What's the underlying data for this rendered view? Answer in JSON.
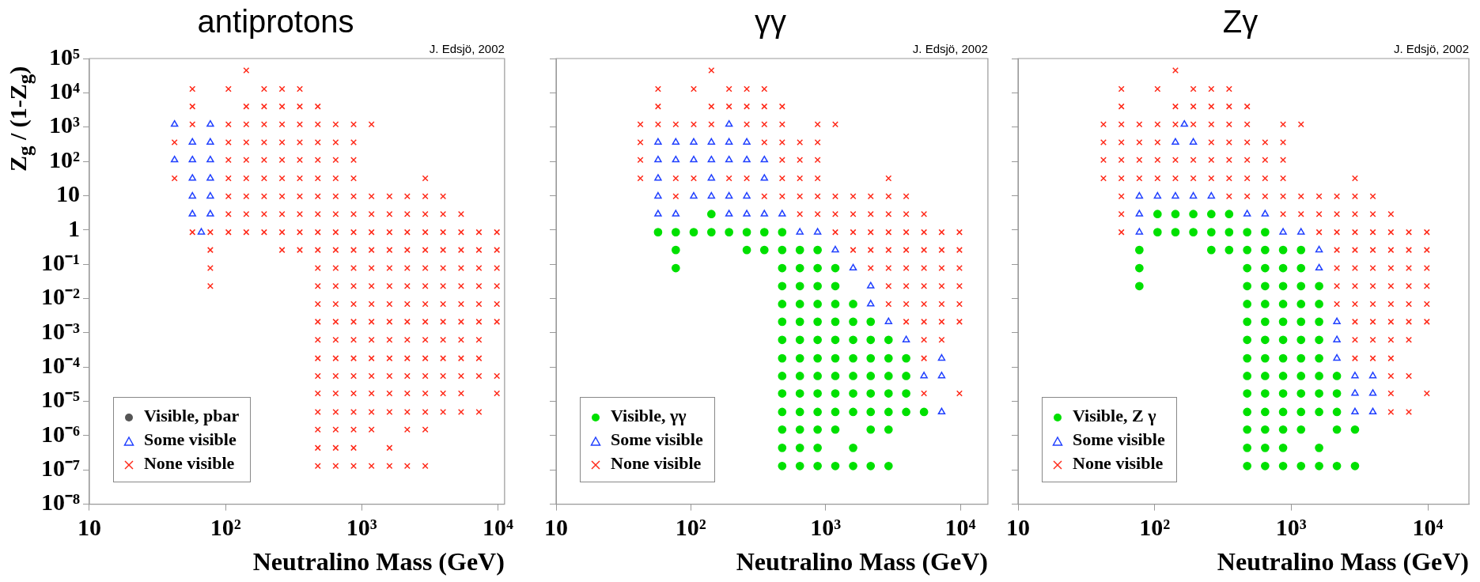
{
  "chart_data": [
    {
      "type": "scatter",
      "title": "antiprotons",
      "xlabel": "Neutralino Mass (GeV)",
      "ylabel": "Z$_{g}$ / (1-Z$_{g}$)",
      "annotations": [
        "J. Edsjö, 2002"
      ],
      "log": "xy",
      "grid": false,
      "legend": "bottom left",
      "xlim": [
        10,
        11200
      ],
      "xticks": [
        {
          "value": 10,
          "label": "10"
        },
        {
          "value": 100,
          "label": "10²"
        },
        {
          "value": 1000,
          "label": "10³"
        },
        {
          "value": 10000,
          "label": "10⁴"
        }
      ],
      "ylim": [
        1e-08,
        100000.0
      ],
      "yticks": [
        {
          "value": 1e-08,
          "label": "10⁻⁸"
        },
        {
          "value": 1e-07,
          "label": "10⁻⁷"
        },
        {
          "value": 1e-06,
          "label": "10⁻⁶"
        },
        {
          "value": 1e-05,
          "label": "10⁻⁵"
        },
        {
          "value": 0.0001,
          "label": "10⁻⁴"
        },
        {
          "value": 0.001,
          "label": "10⁻³"
        },
        {
          "value": 0.01,
          "label": "10⁻²"
        },
        {
          "value": 0.1,
          "label": "10⁻¹"
        },
        {
          "value": 1,
          "label": "1"
        },
        {
          "value": 10,
          "label": "10"
        },
        {
          "value": 100,
          "label": "10²"
        },
        {
          "value": 1000,
          "label": "10³"
        },
        {
          "value": 10000,
          "label": "10⁴"
        },
        {
          "value": 100000,
          "label": "10⁵"
        }
      ],
      "series": [
        {
          "name": "Visible, pbar",
          "color": "#555555",
          "marker": "circle"
        },
        {
          "name": "Some visible",
          "color": "#2040ff",
          "marker": "triangle",
          "x": [
            42.2,
            77.3,
            57.1,
            77.3,
            42.2,
            57.1,
            77.3,
            57.1,
            77.3,
            57.1,
            77.3,
            57.1,
            77.3,
            66.4
          ],
          "values": [
            1200,
            1200,
            360,
            360,
            110,
            110,
            110,
            32,
            32,
            9.6,
            9.6,
            2.9,
            2.9,
            0.86
          ]
        },
        {
          "name": "None visible",
          "color": "#ff2a1a",
          "marker": "cross",
          "x": [
            142,
            57.1,
            105,
            192,
            260,
            351,
            57.1,
            142,
            192,
            260,
            351,
            476,
            57.1,
            105,
            142,
            192,
            260,
            351,
            476,
            644,
            872,
            1180,
            42.2,
            105,
            142,
            192,
            260,
            351,
            476,
            644,
            872,
            105,
            142,
            192,
            260,
            351,
            476,
            644,
            872,
            42.2,
            105,
            142,
            192,
            260,
            351,
            476,
            644,
            872,
            2930,
            105,
            142,
            192,
            260,
            351,
            476,
            644,
            872,
            1180,
            1600,
            2160,
            2930,
            3960,
            105,
            142,
            192,
            260,
            351,
            476,
            644,
            872,
            1180,
            1600,
            2160,
            2930,
            3960,
            5370,
            57.1,
            77.3,
            105,
            142,
            192,
            260,
            351,
            476,
            644,
            872,
            1180,
            1600,
            2160,
            2930,
            3960,
            5370,
            7260,
            9840,
            77.3,
            260,
            351,
            476,
            644,
            872,
            1180,
            1600,
            2160,
            2930,
            3960,
            5370,
            7260,
            9840,
            77.3,
            476,
            644,
            872,
            1180,
            1600,
            2160,
            2930,
            3960,
            5370,
            7260,
            9840,
            77.3,
            476,
            644,
            872,
            1180,
            1600,
            2160,
            2930,
            3960,
            5370,
            7260,
            9840,
            476,
            644,
            872,
            1180,
            1600,
            2160,
            2930,
            3960,
            5370,
            7260,
            9840,
            476,
            644,
            872,
            1180,
            1600,
            2160,
            2930,
            3960,
            5370,
            7260,
            9840,
            476,
            644,
            872,
            1180,
            1600,
            2160,
            2930,
            3960,
            5370,
            7260,
            476,
            644,
            872,
            1180,
            1600,
            2160,
            2930,
            3960,
            5370,
            7260,
            476,
            644,
            872,
            1180,
            1600,
            2160,
            2930,
            3960,
            5370,
            7260,
            9840,
            476,
            644,
            872,
            1180,
            1600,
            2160,
            2930,
            3960,
            5370,
            9840,
            476,
            644,
            872,
            1180,
            1600,
            2160,
            2930,
            3960,
            5370,
            7260,
            476,
            644,
            872,
            1180,
            2160,
            2930,
            476,
            644,
            872,
            1600,
            476,
            644,
            872,
            1180,
            1600,
            2160,
            2930
          ],
          "values": [
            45000,
            13000,
            13000,
            13000,
            13000,
            13000,
            4000,
            4000,
            4000,
            4000,
            4000,
            4000,
            1200,
            1200,
            1200,
            1200,
            1200,
            1200,
            1200,
            1200,
            1200,
            1200,
            360,
            360,
            360,
            360,
            360,
            360,
            360,
            360,
            360,
            110,
            110,
            110,
            110,
            110,
            110,
            110,
            110,
            32,
            32,
            32,
            32,
            32,
            32,
            32,
            32,
            32,
            32,
            9.6,
            9.6,
            9.6,
            9.6,
            9.6,
            9.6,
            9.6,
            9.6,
            9.6,
            9.6,
            9.6,
            9.6,
            9.6,
            2.9,
            2.9,
            2.9,
            2.9,
            2.9,
            2.9,
            2.9,
            2.9,
            2.9,
            2.9,
            2.9,
            2.9,
            2.9,
            2.9,
            0.86,
            0.86,
            0.86,
            0.86,
            0.86,
            0.86,
            0.86,
            0.86,
            0.86,
            0.86,
            0.86,
            0.86,
            0.86,
            0.86,
            0.86,
            0.86,
            0.86,
            0.86,
            0.26,
            0.26,
            0.26,
            0.26,
            0.26,
            0.26,
            0.26,
            0.26,
            0.26,
            0.26,
            0.26,
            0.26,
            0.26,
            0.26,
            0.077,
            0.077,
            0.077,
            0.077,
            0.077,
            0.077,
            0.077,
            0.077,
            0.077,
            0.077,
            0.077,
            0.077,
            0.023,
            0.023,
            0.023,
            0.023,
            0.023,
            0.023,
            0.023,
            0.023,
            0.023,
            0.023,
            0.023,
            0.023,
            0.0069,
            0.0069,
            0.0069,
            0.0069,
            0.0069,
            0.0069,
            0.0069,
            0.0069,
            0.0069,
            0.0069,
            0.0069,
            0.0021,
            0.0021,
            0.0021,
            0.0021,
            0.0021,
            0.0021,
            0.0021,
            0.0021,
            0.0021,
            0.0021,
            0.0021,
            0.00062,
            0.00062,
            0.00062,
            0.00062,
            0.00062,
            0.00062,
            0.00062,
            0.00062,
            0.00062,
            0.00062,
            0.00018,
            0.00018,
            0.00018,
            0.00018,
            0.00018,
            0.00018,
            0.00018,
            0.00018,
            0.00018,
            0.00018,
            5.5e-05,
            5.5e-05,
            5.5e-05,
            5.5e-05,
            5.5e-05,
            5.5e-05,
            5.5e-05,
            5.5e-05,
            5.5e-05,
            5.5e-05,
            5.5e-05,
            1.7e-05,
            1.7e-05,
            1.7e-05,
            1.7e-05,
            1.7e-05,
            1.7e-05,
            1.7e-05,
            1.7e-05,
            1.7e-05,
            1.7e-05,
            4.9e-06,
            4.9e-06,
            4.9e-06,
            4.9e-06,
            4.9e-06,
            4.9e-06,
            4.9e-06,
            4.9e-06,
            4.9e-06,
            4.9e-06,
            1.5e-06,
            1.5e-06,
            1.5e-06,
            1.5e-06,
            1.5e-06,
            1.5e-06,
            4.4e-07,
            4.4e-07,
            4.4e-07,
            4.4e-07,
            1.3e-07,
            1.3e-07,
            1.3e-07,
            1.3e-07,
            1.3e-07,
            1.3e-07,
            1.3e-07
          ]
        }
      ]
    },
    {
      "type": "scatter",
      "title": "γγ",
      "xlabel": "Neutralino Mass (GeV)",
      "annotations": [
        "J. Edsjö, 2002"
      ],
      "log": "xy",
      "grid": false,
      "legend": "bottom left",
      "tick_labels": "x",
      "xlim": [
        10,
        16000
      ],
      "xticks": [
        10,
        {
          "value": 100,
          "label": "10²"
        },
        {
          "value": 1000,
          "label": "10³"
        },
        {
          "value": 10000,
          "label": "10⁴"
        }
      ],
      "ylim": [
        1e-08,
        100000.0
      ],
      "yticks": [
        1e-08,
        1e-07,
        1e-06,
        1e-05,
        0.0001,
        0.001,
        0.01,
        0.1,
        1,
        10,
        100,
        1000,
        10000,
        100000
      ],
      "series": [
        {
          "name": "Visible, γγ",
          "color": "#00e000",
          "marker": "circle",
          "x": [
            142,
            57.1,
            77.3,
            105,
            142,
            192,
            260,
            351,
            476,
            77.3,
            260,
            351,
            476,
            644,
            872,
            77.3,
            476,
            644,
            872,
            1180,
            476,
            644,
            872,
            1180,
            476,
            644,
            872,
            1180,
            1600,
            476,
            644,
            872,
            1180,
            1600,
            2160,
            476,
            644,
            872,
            1180,
            1600,
            2160,
            2930,
            476,
            644,
            872,
            1180,
            1600,
            2160,
            2930,
            3960,
            476,
            644,
            872,
            1180,
            1600,
            2160,
            2930,
            3960,
            476,
            644,
            872,
            1180,
            1600,
            2160,
            2930,
            3960,
            476,
            644,
            872,
            1180,
            1600,
            2160,
            2930,
            3960,
            5370,
            476,
            644,
            872,
            1180,
            2160,
            2930,
            476,
            644,
            872,
            1600,
            476,
            644,
            872,
            1180,
            1600,
            2160,
            2930
          ],
          "values": [
            2.9,
            0.86,
            0.86,
            0.86,
            0.86,
            0.86,
            0.86,
            0.86,
            0.86,
            0.26,
            0.26,
            0.26,
            0.26,
            0.26,
            0.26,
            0.077,
            0.077,
            0.077,
            0.077,
            0.077,
            0.023,
            0.023,
            0.023,
            0.023,
            0.0069,
            0.0069,
            0.0069,
            0.0069,
            0.0069,
            0.0021,
            0.0021,
            0.0021,
            0.0021,
            0.0021,
            0.0021,
            0.00062,
            0.00062,
            0.00062,
            0.00062,
            0.00062,
            0.00062,
            0.00062,
            0.00018,
            0.00018,
            0.00018,
            0.00018,
            0.00018,
            0.00018,
            0.00018,
            0.00018,
            5.5e-05,
            5.5e-05,
            5.5e-05,
            5.5e-05,
            5.5e-05,
            5.5e-05,
            5.5e-05,
            5.5e-05,
            1.7e-05,
            1.7e-05,
            1.7e-05,
            1.7e-05,
            1.7e-05,
            1.7e-05,
            1.7e-05,
            1.7e-05,
            4.9e-06,
            4.9e-06,
            4.9e-06,
            4.9e-06,
            4.9e-06,
            4.9e-06,
            4.9e-06,
            4.9e-06,
            4.9e-06,
            1.5e-06,
            1.5e-06,
            1.5e-06,
            1.5e-06,
            1.5e-06,
            1.5e-06,
            4.4e-07,
            4.4e-07,
            4.4e-07,
            4.4e-07,
            1.3e-07,
            1.3e-07,
            1.3e-07,
            1.3e-07,
            1.3e-07,
            1.3e-07,
            1.3e-07
          ]
        },
        {
          "name": "Some visible",
          "color": "#2040ff",
          "marker": "triangle",
          "x": [
            192,
            57.1,
            77.3,
            105,
            142,
            192,
            260,
            57.1,
            77.3,
            105,
            142,
            192,
            260,
            351,
            57.1,
            142,
            351,
            57.1,
            105,
            142,
            192,
            260,
            57.1,
            77.3,
            192,
            260,
            351,
            476,
            644,
            872,
            1180,
            1600,
            2160,
            2160,
            2930,
            3960,
            7260,
            5370,
            7260,
            7260
          ],
          "values": [
            1200,
            360,
            360,
            360,
            360,
            360,
            360,
            110,
            110,
            110,
            110,
            110,
            110,
            110,
            32,
            32,
            32,
            9.6,
            9.6,
            9.6,
            9.6,
            9.6,
            2.9,
            2.9,
            2.9,
            2.9,
            2.9,
            2.9,
            0.86,
            0.86,
            0.26,
            0.077,
            0.023,
            0.0069,
            0.0021,
            0.00062,
            0.00018,
            5.5e-05,
            5.5e-05,
            4.9e-06
          ]
        },
        {
          "name": "None visible",
          "color": "#ff2a1a",
          "marker": "cross",
          "x": [
            142,
            57.1,
            105,
            192,
            260,
            351,
            57.1,
            142,
            192,
            260,
            351,
            476,
            42.2,
            57.1,
            77.3,
            105,
            142,
            260,
            351,
            476,
            872,
            1180,
            42.2,
            351,
            476,
            644,
            872,
            42.2,
            476,
            644,
            872,
            42.2,
            77.3,
            105,
            192,
            260,
            476,
            644,
            872,
            2930,
            77.3,
            351,
            476,
            644,
            872,
            1180,
            1600,
            2160,
            2930,
            3960,
            644,
            872,
            1180,
            1600,
            2160,
            2930,
            3960,
            5370,
            1180,
            1600,
            2160,
            2930,
            3960,
            5370,
            7260,
            9840,
            1600,
            2160,
            2930,
            3960,
            5370,
            7260,
            9840,
            2160,
            2930,
            3960,
            5370,
            7260,
            9840,
            2930,
            3960,
            5370,
            7260,
            9840,
            2930,
            3960,
            5370,
            7260,
            9840,
            3960,
            5370,
            7260,
            9840,
            5370,
            7260,
            5370,
            5370,
            9840
          ],
          "values": [
            45000,
            13000,
            13000,
            13000,
            13000,
            13000,
            4000,
            4000,
            4000,
            4000,
            4000,
            4000,
            1200,
            1200,
            1200,
            1200,
            1200,
            1200,
            1200,
            1200,
            1200,
            1200,
            360,
            360,
            360,
            360,
            360,
            110,
            110,
            110,
            110,
            32,
            32,
            32,
            32,
            32,
            32,
            32,
            32,
            32,
            9.6,
            9.6,
            9.6,
            9.6,
            9.6,
            9.6,
            9.6,
            9.6,
            9.6,
            9.6,
            2.9,
            2.9,
            2.9,
            2.9,
            2.9,
            2.9,
            2.9,
            2.9,
            0.86,
            0.86,
            0.86,
            0.86,
            0.86,
            0.86,
            0.86,
            0.86,
            0.26,
            0.26,
            0.26,
            0.26,
            0.26,
            0.26,
            0.26,
            0.077,
            0.077,
            0.077,
            0.077,
            0.077,
            0.077,
            0.023,
            0.023,
            0.023,
            0.023,
            0.023,
            0.0069,
            0.0069,
            0.0069,
            0.0069,
            0.0069,
            0.0021,
            0.0021,
            0.0021,
            0.0021,
            0.00062,
            0.00062,
            0.00018,
            1.7e-05,
            1.7e-05
          ]
        }
      ]
    },
    {
      "type": "scatter",
      "title": "Zγ",
      "xlabel": "Neutralino Mass (GeV)",
      "annotations": [
        "J. Edsjö, 2002"
      ],
      "log": "xy",
      "grid": false,
      "legend": "bottom left",
      "tick_labels": "x",
      "xlim": [
        10,
        20000
      ],
      "xticks": [
        10,
        {
          "value": 100,
          "label": "10²"
        },
        {
          "value": 1000,
          "label": "10³"
        },
        {
          "value": 10000,
          "label": "10⁴"
        }
      ],
      "ylim": [
        1e-08,
        100000.0
      ],
      "yticks": [
        1e-08,
        1e-07,
        1e-06,
        1e-05,
        0.0001,
        0.001,
        0.01,
        0.1,
        1,
        10,
        100,
        1000,
        10000,
        100000
      ],
      "series": [
        {
          "name": "Visible, Z γ",
          "color": "#00e000",
          "marker": "circle",
          "x": [
            105,
            142,
            192,
            260,
            351,
            105,
            142,
            192,
            260,
            351,
            476,
            644,
            77.3,
            260,
            351,
            476,
            644,
            872,
            1180,
            77.3,
            476,
            644,
            872,
            1180,
            77.3,
            476,
            644,
            872,
            1180,
            1600,
            476,
            644,
            872,
            1180,
            1600,
            476,
            644,
            872,
            1180,
            1600,
            476,
            644,
            872,
            1180,
            1600,
            476,
            644,
            872,
            1180,
            1600,
            476,
            644,
            872,
            1180,
            1600,
            2160,
            476,
            644,
            872,
            1180,
            1600,
            2160,
            476,
            644,
            872,
            1180,
            1600,
            2160,
            476,
            644,
            872,
            1180,
            2160,
            2930,
            476,
            644,
            872,
            1600,
            476,
            644,
            872,
            1180,
            1600,
            2160,
            2930
          ],
          "values": [
            2.9,
            2.9,
            2.9,
            2.9,
            2.9,
            0.86,
            0.86,
            0.86,
            0.86,
            0.86,
            0.86,
            0.86,
            0.26,
            0.26,
            0.26,
            0.26,
            0.26,
            0.26,
            0.26,
            0.077,
            0.077,
            0.077,
            0.077,
            0.077,
            0.023,
            0.023,
            0.023,
            0.023,
            0.023,
            0.023,
            0.0069,
            0.0069,
            0.0069,
            0.0069,
            0.0069,
            0.0021,
            0.0021,
            0.0021,
            0.0021,
            0.0021,
            0.00062,
            0.00062,
            0.00062,
            0.00062,
            0.00062,
            0.00018,
            0.00018,
            0.00018,
            0.00018,
            0.00018,
            5.5e-05,
            5.5e-05,
            5.5e-05,
            5.5e-05,
            5.5e-05,
            5.5e-05,
            1.7e-05,
            1.7e-05,
            1.7e-05,
            1.7e-05,
            1.7e-05,
            1.7e-05,
            4.9e-06,
            4.9e-06,
            4.9e-06,
            4.9e-06,
            4.9e-06,
            4.9e-06,
            1.5e-06,
            1.5e-06,
            1.5e-06,
            1.5e-06,
            1.5e-06,
            1.5e-06,
            4.4e-07,
            4.4e-07,
            4.4e-07,
            4.4e-07,
            1.3e-07,
            1.3e-07,
            1.3e-07,
            1.3e-07,
            1.3e-07,
            1.3e-07,
            1.3e-07
          ]
        },
        {
          "name": "Some visible",
          "color": "#2040ff",
          "marker": "triangle",
          "x": [
            165,
            142,
            192,
            77.3,
            105,
            142,
            192,
            260,
            77.3,
            476,
            644,
            77.3,
            872,
            1180,
            1600,
            1600,
            2160,
            2160,
            2160,
            2930,
            3960,
            2930,
            3960,
            2930,
            3960
          ],
          "values": [
            1200,
            360,
            360,
            9.6,
            9.6,
            9.6,
            9.6,
            9.6,
            2.9,
            2.9,
            2.9,
            0.86,
            0.86,
            0.86,
            0.26,
            0.077,
            0.0021,
            0.00062,
            0.00018,
            5.5e-05,
            5.5e-05,
            1.7e-05,
            1.7e-05,
            4.9e-06,
            4.9e-06
          ]
        },
        {
          "name": "None visible",
          "color": "#ff2a1a",
          "marker": "cross",
          "x": [
            142,
            57.1,
            105,
            192,
            260,
            351,
            57.1,
            142,
            192,
            260,
            351,
            476,
            42.2,
            57.1,
            77.3,
            105,
            142,
            192,
            260,
            351,
            476,
            872,
            1180,
            42.2,
            57.1,
            77.3,
            105,
            260,
            351,
            476,
            644,
            872,
            42.2,
            57.1,
            77.3,
            105,
            142,
            192,
            260,
            351,
            476,
            644,
            872,
            42.2,
            57.1,
            77.3,
            105,
            142,
            192,
            260,
            351,
            476,
            644,
            872,
            2930,
            57.1,
            351,
            476,
            644,
            872,
            1180,
            1600,
            2160,
            2930,
            3960,
            57.1,
            872,
            1180,
            1600,
            2160,
            2930,
            3960,
            5370,
            57.1,
            1600,
            2160,
            2930,
            3960,
            5370,
            7260,
            9840,
            2160,
            2930,
            3960,
            5370,
            7260,
            9840,
            2160,
            2930,
            3960,
            5370,
            7260,
            9840,
            2160,
            2930,
            3960,
            5370,
            7260,
            9840,
            2160,
            2930,
            3960,
            5370,
            7260,
            9840,
            2930,
            3960,
            5370,
            7260,
            9840,
            2930,
            3960,
            5370,
            7260,
            2930,
            3960,
            5370,
            5370,
            7260,
            5370,
            9840,
            5370,
            7260
          ],
          "values": [
            45000,
            13000,
            13000,
            13000,
            13000,
            13000,
            4000,
            4000,
            4000,
            4000,
            4000,
            4000,
            1200,
            1200,
            1200,
            1200,
            1200,
            1200,
            1200,
            1200,
            1200,
            1200,
            1200,
            360,
            360,
            360,
            360,
            360,
            360,
            360,
            360,
            360,
            110,
            110,
            110,
            110,
            110,
            110,
            110,
            110,
            110,
            110,
            110,
            32,
            32,
            32,
            32,
            32,
            32,
            32,
            32,
            32,
            32,
            32,
            32,
            9.6,
            9.6,
            9.6,
            9.6,
            9.6,
            9.6,
            9.6,
            9.6,
            9.6,
            9.6,
            2.9,
            2.9,
            2.9,
            2.9,
            2.9,
            2.9,
            2.9,
            2.9,
            0.86,
            0.86,
            0.86,
            0.86,
            0.86,
            0.86,
            0.86,
            0.86,
            0.26,
            0.26,
            0.26,
            0.26,
            0.26,
            0.26,
            0.077,
            0.077,
            0.077,
            0.077,
            0.077,
            0.077,
            0.023,
            0.023,
            0.023,
            0.023,
            0.023,
            0.023,
            0.0069,
            0.0069,
            0.0069,
            0.0069,
            0.0069,
            0.0069,
            0.0021,
            0.0021,
            0.0021,
            0.0021,
            0.0021,
            0.00062,
            0.00062,
            0.00062,
            0.00062,
            0.00018,
            0.00018,
            0.00018,
            5.5e-05,
            5.5e-05,
            1.7e-05,
            1.7e-05,
            4.9e-06,
            4.9e-06
          ]
        }
      ]
    }
  ]
}
